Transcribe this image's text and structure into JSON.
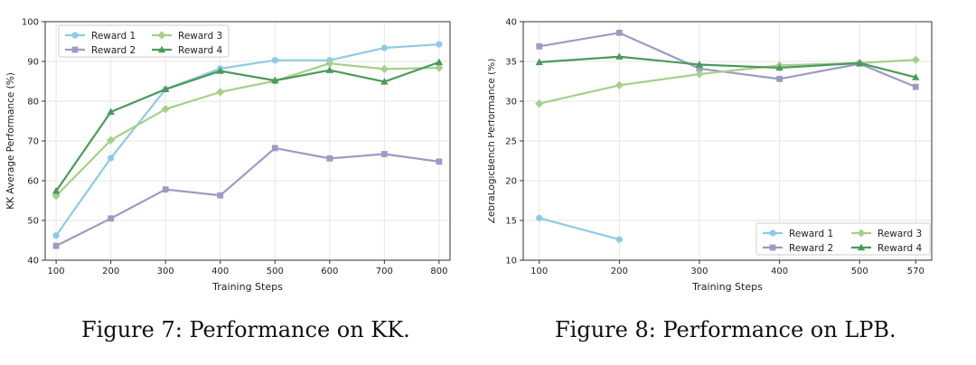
{
  "chart_data": [
    {
      "type": "line",
      "xlabel": "Training Steps",
      "ylabel": "KK Average Performance (%)",
      "x": [
        100,
        200,
        300,
        400,
        500,
        600,
        700,
        800
      ],
      "xticks": [
        "100",
        "200",
        "300",
        "400",
        "500",
        "600",
        "700",
        "800"
      ],
      "ylim": [
        40,
        100
      ],
      "yticks": [
        40,
        50,
        60,
        70,
        80,
        90,
        100
      ],
      "grid": true,
      "legend_position": "top-left",
      "series": [
        {
          "name": "Reward 1",
          "color": "#8ecae6",
          "marker": "circle",
          "values": [
            46.2,
            65.7,
            83.0,
            88.2,
            90.3,
            90.3,
            93.4,
            94.3
          ]
        },
        {
          "name": "Reward 2",
          "color": "#9a9cc4",
          "marker": "square",
          "values": [
            43.6,
            50.5,
            57.8,
            56.3,
            68.2,
            65.6,
            66.7,
            64.8
          ]
        },
        {
          "name": "Reward 3",
          "color": "#a6cf8c",
          "marker": "diamond",
          "values": [
            56.2,
            70.2,
            78.0,
            82.3,
            85.1,
            89.5,
            88.1,
            88.4
          ]
        },
        {
          "name": "Reward 4",
          "color": "#4b9a5c",
          "marker": "triangle",
          "values": [
            57.4,
            77.3,
            83.0,
            87.6,
            85.2,
            87.8,
            84.9,
            89.8
          ]
        }
      ],
      "caption": "Figure 7: Performance on KK."
    },
    {
      "type": "line",
      "xlabel": "Training Steps",
      "ylabel": "ZebraLogicBench Performance (%)",
      "x": [
        100,
        200,
        300,
        400,
        500,
        570
      ],
      "xticks": [
        "100",
        "200",
        "300",
        "400",
        "500",
        "570"
      ],
      "ylim": [
        10,
        40
      ],
      "yticks": [
        10,
        15,
        20,
        25,
        30,
        35,
        40
      ],
      "grid": true,
      "legend_position": "bottom-right",
      "series": [
        {
          "name": "Reward 1",
          "color": "#8ecae6",
          "marker": "circle",
          "x": [
            100,
            200
          ],
          "values": [
            15.3,
            12.6
          ]
        },
        {
          "name": "Reward 2",
          "color": "#9a9cc4",
          "marker": "square",
          "values": [
            36.9,
            38.6,
            34.1,
            32.8,
            34.7,
            31.8
          ]
        },
        {
          "name": "Reward 3",
          "color": "#a6cf8c",
          "marker": "diamond",
          "values": [
            29.7,
            32.0,
            33.4,
            34.5,
            34.8,
            35.2
          ]
        },
        {
          "name": "Reward 4",
          "color": "#4b9a5c",
          "marker": "triangle",
          "values": [
            34.9,
            35.6,
            34.6,
            34.2,
            34.8,
            33.0
          ]
        }
      ],
      "caption": "Figure 8: Performance on LPB."
    }
  ]
}
